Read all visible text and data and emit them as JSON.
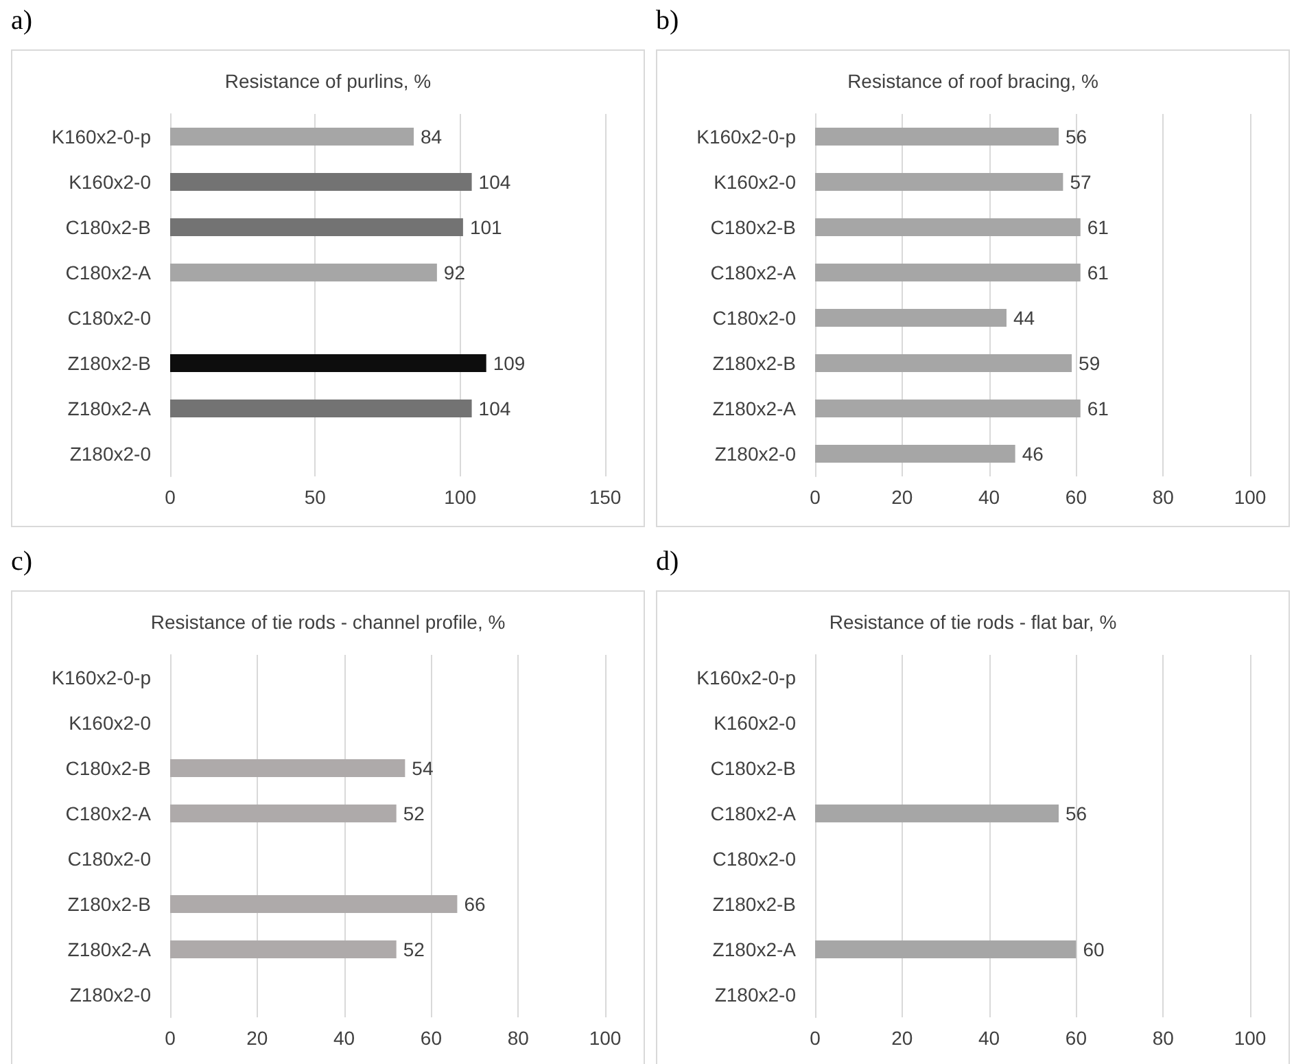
{
  "chart_data": [
    {
      "type": "bar",
      "orientation": "horizontal",
      "title": "Resistance of purlins, %",
      "annotations": [
        "a)"
      ],
      "categories": [
        "K160x2-0-p",
        "K160x2-0",
        "C180x2-B",
        "C180x2-A",
        "C180x2-0",
        "Z180x2-B",
        "Z180x2-A",
        "Z180x2-0"
      ],
      "values": [
        84,
        104,
        101,
        92,
        null,
        109,
        104,
        null
      ],
      "colors": [
        "#a6a6a6",
        "#737373",
        "#737373",
        "#a6a6a6",
        "#a6a6a6",
        "#0d0d0d",
        "#737373",
        "#a6a6a6"
      ],
      "xlim": [
        0,
        150
      ],
      "xticks": [
        0,
        50,
        100,
        150
      ],
      "grid": "x",
      "data_labels": true
    },
    {
      "type": "bar",
      "orientation": "horizontal",
      "title": "Resistance of roof bracing, %",
      "annotations": [
        "b)"
      ],
      "categories": [
        "K160x2-0-p",
        "K160x2-0",
        "C180x2-B",
        "C180x2-A",
        "C180x2-0",
        "Z180x2-B",
        "Z180x2-A",
        "Z180x2-0"
      ],
      "values": [
        56,
        57,
        61,
        61,
        44,
        59,
        61,
        46
      ],
      "color": "#a6a6a6",
      "xlim": [
        0,
        100
      ],
      "xticks": [
        0,
        20,
        40,
        60,
        80,
        100
      ],
      "grid": "x",
      "data_labels": true
    },
    {
      "type": "bar",
      "orientation": "horizontal",
      "title": "Resistance of tie rods - channel profile, %",
      "annotations": [
        "c)"
      ],
      "categories": [
        "K160x2-0-p",
        "K160x2-0",
        "C180x2-B",
        "C180x2-A",
        "C180x2-0",
        "Z180x2-B",
        "Z180x2-A",
        "Z180x2-0"
      ],
      "values": [
        null,
        null,
        54,
        52,
        null,
        66,
        52,
        null
      ],
      "color": "#aeaaaa",
      "xlim": [
        0,
        100
      ],
      "xticks": [
        0,
        20,
        40,
        60,
        80,
        100
      ],
      "grid": "x",
      "data_labels": true
    },
    {
      "type": "bar",
      "orientation": "horizontal",
      "title": "Resistance of tie rods - flat bar, %",
      "annotations": [
        "d)"
      ],
      "categories": [
        "K160x2-0-p",
        "K160x2-0",
        "C180x2-B",
        "C180x2-A",
        "C180x2-0",
        "Z180x2-B",
        "Z180x2-A",
        "Z180x2-0"
      ],
      "values": [
        null,
        null,
        null,
        56,
        null,
        null,
        60,
        null
      ],
      "color": "#a6a6a6",
      "xlim": [
        0,
        100
      ],
      "xticks": [
        0,
        20,
        40,
        60,
        80,
        100
      ],
      "grid": "x",
      "data_labels": true
    }
  ]
}
